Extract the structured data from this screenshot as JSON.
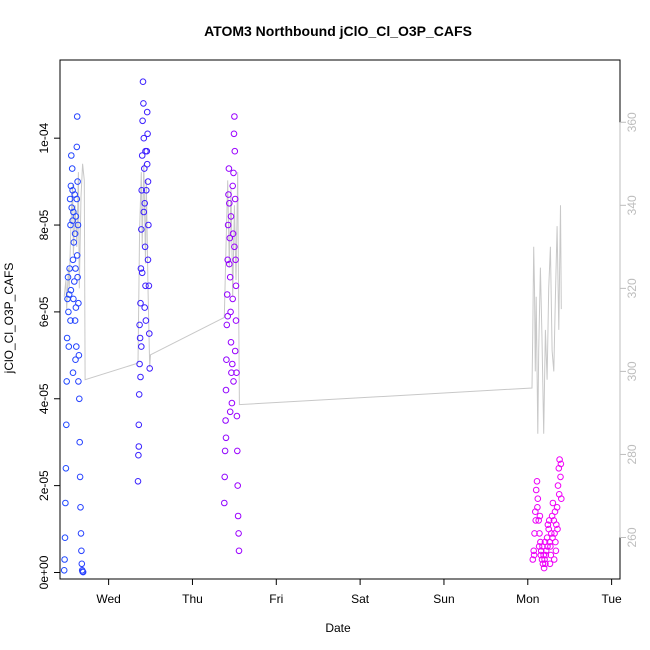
{
  "chart_data": {
    "type": "scatter",
    "title": "ATOM3 Northbound jClO_Cl_O3P_CAFS",
    "xlabel": "Date",
    "ylabel": "jClO_Cl_O3P_CAFS",
    "x_ticks": [
      "Wed",
      "Thu",
      "Fri",
      "Sat",
      "Sun",
      "Mon",
      "Tue"
    ],
    "x_tick_values": [
      1,
      2,
      3,
      4,
      5,
      6,
      7
    ],
    "xlim": [
      0.42,
      7.1
    ],
    "y_ticks": [
      "0e+00",
      "2e-05",
      "4e-05",
      "6e-05",
      "8e-05",
      "1e-04"
    ],
    "y_tick_values": [
      0,
      2e-05,
      4e-05,
      6e-05,
      8e-05,
      0.0001
    ],
    "ylim": [
      -1.5e-06,
      0.000118
    ],
    "y2_ticks": [
      "260",
      "280",
      "300",
      "320",
      "340",
      "360"
    ],
    "y2_tick_values": [
      260,
      280,
      300,
      320,
      340,
      360
    ],
    "y2lim": [
      250,
      375
    ],
    "grid": false,
    "colors": {
      "early": "#1f4dff",
      "mid": "#9a00ff",
      "late": "#f000f8",
      "line": "#c8c8c8",
      "right_axis": "#bdbdbd"
    },
    "series": [
      {
        "points": [
          [
            0.47,
            5e-07
          ],
          [
            0.475,
            3e-06
          ],
          [
            0.48,
            8e-06
          ],
          [
            0.485,
            1.6e-05
          ],
          [
            0.49,
            2.4e-05
          ],
          [
            0.495,
            3.4e-05
          ],
          [
            0.5,
            4.4e-05
          ],
          [
            0.505,
            5.4e-05
          ],
          [
            0.51,
            6.3e-05
          ],
          [
            0.515,
            6.8e-05
          ],
          [
            0.52,
            6e-05
          ],
          [
            0.525,
            5.2e-05
          ],
          [
            0.53,
            6.4e-05
          ],
          [
            0.535,
            7e-05
          ],
          [
            0.54,
            8.6e-05
          ],
          [
            0.545,
            8e-05
          ],
          [
            0.55,
            8.9e-05
          ],
          [
            0.555,
            9.6e-05
          ],
          [
            0.56,
            8.4e-05
          ],
          [
            0.565,
            9.3e-05
          ],
          [
            0.57,
            8.8e-05
          ],
          [
            0.575,
            7.2e-05
          ],
          [
            0.58,
            6.3e-05
          ],
          [
            0.585,
            7.6e-05
          ],
          [
            0.59,
            6.7e-05
          ],
          [
            0.595,
            8.7e-05
          ],
          [
            0.6,
            7.8e-05
          ],
          [
            0.605,
            7e-05
          ],
          [
            0.61,
            6.1e-05
          ],
          [
            0.615,
            5.2e-05
          ],
          [
            0.62,
            9.8e-05
          ],
          [
            0.625,
            0.000105
          ],
          [
            0.63,
            9e-05
          ],
          [
            0.635,
            8e-05
          ],
          [
            0.64,
            6.2e-05
          ],
          [
            0.645,
            5e-05
          ],
          [
            0.65,
            4e-05
          ],
          [
            0.655,
            3e-05
          ],
          [
            0.66,
            2.2e-05
          ],
          [
            0.665,
            1.5e-05
          ],
          [
            0.67,
            9e-06
          ],
          [
            0.675,
            5e-06
          ],
          [
            0.68,
            2e-06
          ],
          [
            0.685,
            5e-07
          ],
          [
            0.69,
            2e-07
          ],
          [
            0.695,
            1e-07
          ],
          [
            0.575,
            4.6e-05
          ],
          [
            0.6,
            5.8e-05
          ],
          [
            0.625,
            7.3e-05
          ],
          [
            0.605,
            4.9e-05
          ],
          [
            0.55,
            6.5e-05
          ],
          [
            0.545,
            5.8e-05
          ],
          [
            0.61,
            8.2e-05
          ],
          [
            0.62,
            8.6e-05
          ],
          [
            0.63,
            6.8e-05
          ],
          [
            0.64,
            4.4e-05
          ],
          [
            0.57,
            8.1e-05
          ],
          [
            0.58,
            8.3e-05
          ]
        ]
      },
      {
        "points": [
          [
            1.35,
            2.1e-05
          ],
          [
            1.355,
            2.7e-05
          ],
          [
            1.36,
            3.4e-05
          ],
          [
            1.365,
            4.1e-05
          ],
          [
            1.37,
            4.8e-05
          ],
          [
            1.375,
            5.4e-05
          ],
          [
            1.38,
            6.2e-05
          ],
          [
            1.385,
            7e-05
          ],
          [
            1.39,
            7.9e-05
          ],
          [
            1.395,
            8.8e-05
          ],
          [
            1.4,
            9.6e-05
          ],
          [
            1.405,
            0.000104
          ],
          [
            1.41,
            0.000113
          ],
          [
            1.415,
            0.000108
          ],
          [
            1.42,
            0.0001
          ],
          [
            1.425,
            9.3e-05
          ],
          [
            1.43,
            8.5e-05
          ],
          [
            1.435,
            7.5e-05
          ],
          [
            1.44,
            6.6e-05
          ],
          [
            1.445,
            5.8e-05
          ],
          [
            1.45,
            8.8e-05
          ],
          [
            1.455,
            9.7e-05
          ],
          [
            1.46,
            0.000106
          ],
          [
            1.465,
            0.000101
          ],
          [
            1.47,
            9e-05
          ],
          [
            1.475,
            8e-05
          ],
          [
            1.48,
            6.6e-05
          ],
          [
            1.485,
            5.5e-05
          ],
          [
            1.49,
            4.7e-05
          ],
          [
            1.36,
            2.9e-05
          ],
          [
            1.38,
            4.5e-05
          ],
          [
            1.4,
            6.9e-05
          ],
          [
            1.42,
            8.3e-05
          ],
          [
            1.44,
            9.7e-05
          ],
          [
            1.46,
            9.4e-05
          ],
          [
            1.37,
            5.7e-05
          ],
          [
            1.39,
            5.2e-05
          ],
          [
            1.43,
            6.1e-05
          ],
          [
            1.47,
            7.2e-05
          ]
        ]
      },
      {
        "points": [
          [
            2.38,
            1.6e-05
          ],
          [
            2.385,
            2.2e-05
          ],
          [
            2.39,
            2.8e-05
          ],
          [
            2.395,
            3.5e-05
          ],
          [
            2.4,
            4.2e-05
          ],
          [
            2.405,
            4.9e-05
          ],
          [
            2.41,
            5.7e-05
          ],
          [
            2.415,
            6.4e-05
          ],
          [
            2.42,
            7.2e-05
          ],
          [
            2.425,
            8e-05
          ],
          [
            2.43,
            8.7e-05
          ],
          [
            2.435,
            9.3e-05
          ],
          [
            2.44,
            8.5e-05
          ],
          [
            2.445,
            7.7e-05
          ],
          [
            2.45,
            6.8e-05
          ],
          [
            2.455,
            6e-05
          ],
          [
            2.46,
            5.3e-05
          ],
          [
            2.465,
            4.6e-05
          ],
          [
            2.47,
            3.9e-05
          ],
          [
            2.475,
            4.8e-05
          ],
          [
            2.48,
            6.3e-05
          ],
          [
            2.485,
            7.8e-05
          ],
          [
            2.49,
            9.2e-05
          ],
          [
            2.495,
            0.000101
          ],
          [
            2.5,
            0.000105
          ],
          [
            2.505,
            9.7e-05
          ],
          [
            2.51,
            8.6e-05
          ],
          [
            2.515,
            7.2e-05
          ],
          [
            2.52,
            5.8e-05
          ],
          [
            2.525,
            4.6e-05
          ],
          [
            2.53,
            3.6e-05
          ],
          [
            2.535,
            2.8e-05
          ],
          [
            2.54,
            2e-05
          ],
          [
            2.545,
            1.3e-05
          ],
          [
            2.55,
            9e-06
          ],
          [
            2.555,
            5e-06
          ],
          [
            2.4,
            3.1e-05
          ],
          [
            2.42,
            5.9e-05
          ],
          [
            2.44,
            7.1e-05
          ],
          [
            2.46,
            8.2e-05
          ],
          [
            2.48,
            8.9e-05
          ],
          [
            2.5,
            7.5e-05
          ],
          [
            2.52,
            6.6e-05
          ],
          [
            2.45,
            3.7e-05
          ],
          [
            2.49,
            4.4e-05
          ],
          [
            2.51,
            5.1e-05
          ]
        ]
      },
      {
        "points": [
          [
            6.06,
            3e-06
          ],
          [
            6.07,
            5e-06
          ],
          [
            6.08,
            9e-06
          ],
          [
            6.09,
            1.4e-05
          ],
          [
            6.1,
            1.9e-05
          ],
          [
            6.11,
            2.1e-05
          ],
          [
            6.12,
            1.7e-05
          ],
          [
            6.13,
            1.2e-05
          ],
          [
            6.14,
            9e-06
          ],
          [
            6.15,
            7e-06
          ],
          [
            6.16,
            5e-06
          ],
          [
            6.17,
            3e-06
          ],
          [
            6.18,
            2e-06
          ],
          [
            6.19,
            4e-06
          ],
          [
            6.2,
            3e-06
          ],
          [
            6.21,
            2e-06
          ],
          [
            6.22,
            5e-06
          ],
          [
            6.23,
            8e-06
          ],
          [
            6.24,
            1.1e-05
          ],
          [
            6.25,
            1e-05
          ],
          [
            6.26,
            7e-06
          ],
          [
            6.27,
            6e-06
          ],
          [
            6.28,
            9e-06
          ],
          [
            6.29,
            1.3e-05
          ],
          [
            6.3,
            1.6e-05
          ],
          [
            6.31,
            1.2e-05
          ],
          [
            6.32,
            9e-06
          ],
          [
            6.33,
            7e-06
          ],
          [
            6.34,
            1.1e-05
          ],
          [
            6.35,
            1.5e-05
          ],
          [
            6.36,
            2e-05
          ],
          [
            6.37,
            2.4e-05
          ],
          [
            6.38,
            2.6e-05
          ],
          [
            6.39,
            2.2e-05
          ],
          [
            6.4,
            1.7e-05
          ],
          [
            6.075,
            4e-06
          ],
          [
            6.095,
            1.2e-05
          ],
          [
            6.115,
            1.5e-05
          ],
          [
            6.135,
            6e-06
          ],
          [
            6.155,
            4e-06
          ],
          [
            6.175,
            6e-06
          ],
          [
            6.195,
            1e-06
          ],
          [
            6.215,
            4e-06
          ],
          [
            6.235,
            6e-06
          ],
          [
            6.255,
            1.2e-05
          ],
          [
            6.275,
            4e-06
          ],
          [
            6.295,
            8e-06
          ],
          [
            6.315,
            3e-06
          ],
          [
            6.335,
            5e-06
          ],
          [
            6.355,
            1e-05
          ],
          [
            6.375,
            1.8e-05
          ],
          [
            6.395,
            2.5e-05
          ],
          [
            6.145,
            1.3e-05
          ],
          [
            6.205,
            7e-06
          ],
          [
            6.265,
            2e-06
          ],
          [
            6.325,
            1.4e-05
          ]
        ]
      },
      {
        "axis": "right",
        "points": [
          [
            0.47,
            318
          ],
          [
            0.49,
            322
          ],
          [
            0.5,
            315
          ],
          [
            0.52,
            325
          ],
          [
            0.53,
            320
          ],
          [
            0.55,
            335
          ],
          [
            0.57,
            345
          ],
          [
            0.58,
            328
          ],
          [
            0.6,
            340
          ],
          [
            0.62,
            330
          ],
          [
            0.64,
            348
          ],
          [
            0.65,
            320
          ],
          [
            0.67,
            342
          ],
          [
            0.69,
            350
          ],
          [
            0.71,
            346
          ],
          [
            0.72,
            298
          ],
          [
            1.35,
            302
          ],
          [
            1.37,
            334
          ],
          [
            1.39,
            348
          ],
          [
            1.4,
            330
          ],
          [
            1.42,
            350
          ],
          [
            1.44,
            326
          ],
          [
            1.45,
            346
          ],
          [
            1.47,
            320
          ],
          [
            1.49,
            301
          ],
          [
            1.5,
            304
          ],
          [
            2.38,
            313
          ],
          [
            2.4,
            330
          ],
          [
            2.42,
            346
          ],
          [
            2.44,
            325
          ],
          [
            2.46,
            344
          ],
          [
            2.48,
            318
          ],
          [
            2.5,
            340
          ],
          [
            2.52,
            322
          ],
          [
            2.54,
            348
          ],
          [
            2.56,
            292
          ],
          [
            6.05,
            296
          ],
          [
            6.06,
            310
          ],
          [
            6.07,
            330
          ],
          [
            6.08,
            320
          ],
          [
            6.09,
            300
          ],
          [
            6.1,
            318
          ],
          [
            6.12,
            285
          ],
          [
            6.13,
            305
          ],
          [
            6.15,
            325
          ],
          [
            6.17,
            308
          ],
          [
            6.19,
            285
          ],
          [
            6.21,
            310
          ],
          [
            6.23,
            298
          ],
          [
            6.25,
            320
          ],
          [
            6.27,
            330
          ],
          [
            6.29,
            305
          ],
          [
            6.31,
            300
          ],
          [
            6.33,
            318
          ],
          [
            6.35,
            335
          ],
          [
            6.37,
            310
          ],
          [
            6.39,
            340
          ],
          [
            6.4,
            315
          ]
        ]
      }
    ]
  }
}
